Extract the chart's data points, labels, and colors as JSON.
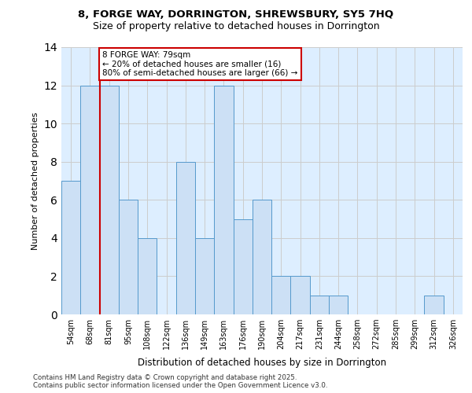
{
  "title_line1": "8, FORGE WAY, DORRINGTON, SHREWSBURY, SY5 7HQ",
  "title_line2": "Size of property relative to detached houses in Dorrington",
  "xlabel": "Distribution of detached houses by size in Dorrington",
  "ylabel": "Number of detached properties",
  "bins": [
    "54sqm",
    "68sqm",
    "81sqm",
    "95sqm",
    "108sqm",
    "122sqm",
    "136sqm",
    "149sqm",
    "163sqm",
    "176sqm",
    "190sqm",
    "204sqm",
    "217sqm",
    "231sqm",
    "244sqm",
    "258sqm",
    "272sqm",
    "285sqm",
    "299sqm",
    "312sqm",
    "326sqm"
  ],
  "values": [
    7,
    12,
    12,
    6,
    4,
    0,
    8,
    4,
    12,
    5,
    6,
    2,
    2,
    1,
    1,
    0,
    0,
    0,
    0,
    1,
    0
  ],
  "bar_color": "#cce0f5",
  "bar_edge_color": "#5599cc",
  "vline_x": 1.5,
  "vline_color": "#cc0000",
  "annotation_text": "8 FORGE WAY: 79sqm\n← 20% of detached houses are smaller (16)\n80% of semi-detached houses are larger (66) →",
  "annotation_box_color": "#ffffff",
  "annotation_box_edge": "#cc0000",
  "ylim": [
    0,
    14
  ],
  "yticks": [
    0,
    2,
    4,
    6,
    8,
    10,
    12,
    14
  ],
  "grid_color": "#cccccc",
  "background_color": "#ddeeff",
  "footer_line1": "Contains HM Land Registry data © Crown copyright and database right 2025.",
  "footer_line2": "Contains public sector information licensed under the Open Government Licence v3.0."
}
